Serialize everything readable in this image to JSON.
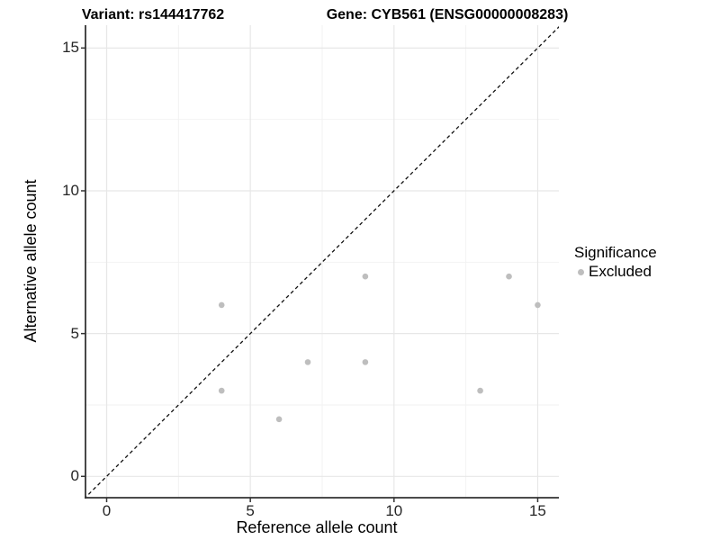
{
  "title": {
    "variant": "Variant: rs144417762",
    "gene": "Gene: CYB561 (ENSG00000008283)"
  },
  "axes": {
    "x": {
      "label": "Reference allele count",
      "ticks": [
        0,
        5,
        10,
        15
      ]
    },
    "y": {
      "label": "Alternative allele count",
      "ticks": [
        0,
        5,
        10,
        15
      ]
    }
  },
  "legend": {
    "title": "Significance",
    "items": [
      {
        "label": "Excluded",
        "marker": "circle-icon",
        "color": "#bebebe"
      }
    ]
  },
  "colors": {
    "point": "#bebebe",
    "grid_major": "#e7e7e7",
    "grid_minor": "#f2f2f2",
    "axis_line": "#333333",
    "tick_mark": "#333333",
    "reference_line": "#111111",
    "background": "#ffffff"
  },
  "chart_data": {
    "type": "scatter",
    "title": "Variant: rs144417762   Gene: CYB561 (ENSG00000008283)",
    "xlabel": "Reference allele count",
    "ylabel": "Alternative allele count",
    "xlim": [
      -0.75,
      15.8
    ],
    "ylim": [
      -0.75,
      15.8
    ],
    "x_ticks": [
      0,
      5,
      10,
      15
    ],
    "y_ticks": [
      0,
      5,
      10,
      15
    ],
    "grid": "major at ticks, minor at midpoints (2.5, 7.5, 12.5)",
    "legend_position": "right",
    "series": [
      {
        "name": "Excluded",
        "color": "#bebebe",
        "marker": "circle",
        "points": [
          [
            4,
            3
          ],
          [
            4,
            6
          ],
          [
            6,
            2
          ],
          [
            7,
            4
          ],
          [
            9,
            4
          ],
          [
            9,
            7
          ],
          [
            13,
            3
          ],
          [
            14,
            7
          ],
          [
            15,
            6
          ]
        ]
      }
    ],
    "reference_line": {
      "kind": "identity y = x",
      "style": "dashed",
      "color": "#111111"
    }
  }
}
